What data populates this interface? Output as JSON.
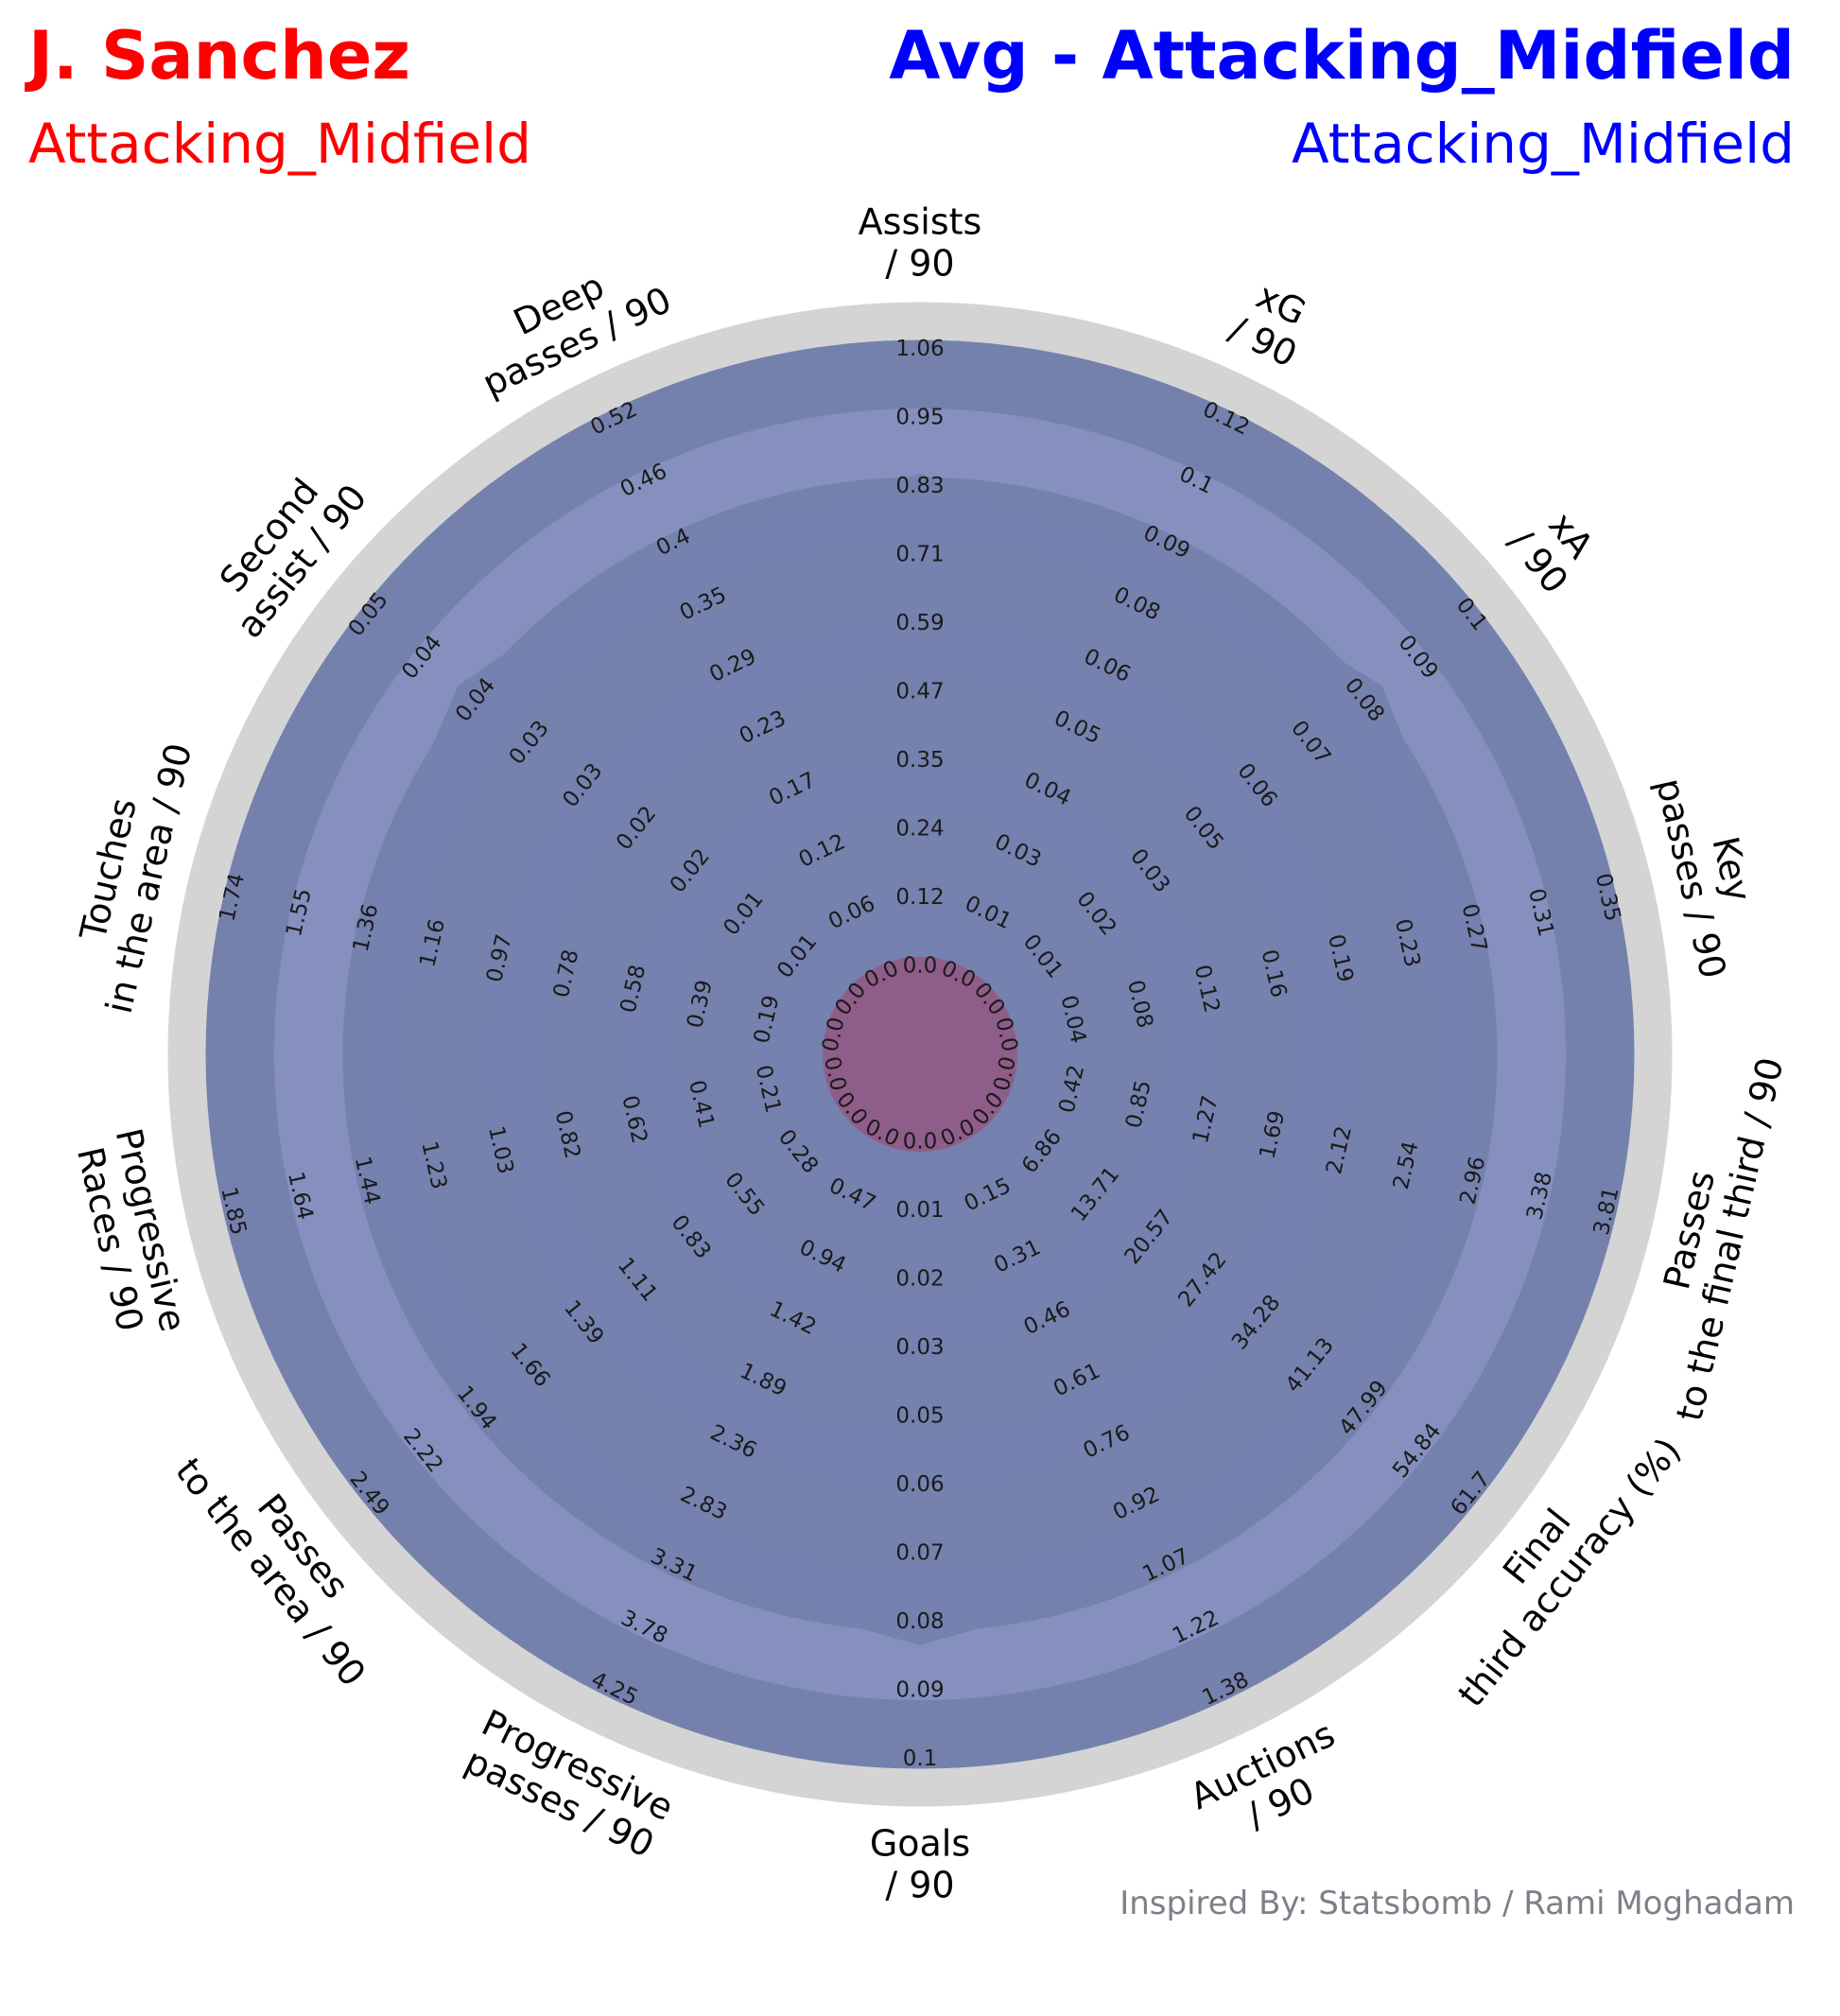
{
  "header": {
    "player_name": "J. Sanchez",
    "player_position": "Attacking_Midfield",
    "compare_name": "Avg - Attacking_Midfield",
    "compare_position": "Attacking_Midfield"
  },
  "credit": "Inspired By: Statsbomb / Rami Moghadam",
  "colors": {
    "player": "#ff0000",
    "compare": "#0000ff",
    "ring_dark": "#7581ad",
    "ring_light": "#8590bf",
    "outer_ring": "#d4d4d4",
    "player_fill": "#b03060",
    "compare_fill": "#7581ad"
  },
  "chart_data": {
    "type": "radar",
    "parameters": [
      {
        "label": [
          "Assists",
          "/ 90"
        ],
        "ticks": [
          "0.0",
          "0.12",
          "0.24",
          "0.35",
          "0.47",
          "0.59",
          "0.71",
          "0.83",
          "0.95",
          "1.06"
        ]
      },
      {
        "label": [
          "xG",
          "/ 90"
        ],
        "ticks": [
          "0.0",
          "0.01",
          "0.03",
          "0.04",
          "0.05",
          "0.06",
          "0.08",
          "0.09",
          "0.1",
          "0.12"
        ]
      },
      {
        "label": [
          "xA",
          "/ 90"
        ],
        "ticks": [
          "0.0",
          "0.01",
          "0.02",
          "0.03",
          "0.05",
          "0.06",
          "0.07",
          "0.08",
          "0.09",
          "0.1"
        ]
      },
      {
        "label": [
          "Key",
          "passes / 90"
        ],
        "ticks": [
          "0.0",
          "0.04",
          "0.08",
          "0.12",
          "0.16",
          "0.19",
          "0.23",
          "0.27",
          "0.31",
          "0.35"
        ]
      },
      {
        "label": [
          "Passes",
          "to the final third / 90"
        ],
        "ticks": [
          "0.0",
          "0.42",
          "0.85",
          "1.27",
          "1.69",
          "2.12",
          "2.54",
          "2.96",
          "3.38",
          "3.81"
        ]
      },
      {
        "label": [
          "Final",
          "third accuracy (%)"
        ],
        "ticks": [
          "0.0",
          "6.86",
          "13.71",
          "20.57",
          "27.42",
          "34.28",
          "41.13",
          "47.99",
          "54.84",
          "61.7"
        ]
      },
      {
        "label": [
          "Auctions",
          "/ 90"
        ],
        "ticks": [
          "0.0",
          "0.15",
          "0.31",
          "0.46",
          "0.61",
          "0.76",
          "0.92",
          "1.07",
          "1.22",
          "1.38"
        ]
      },
      {
        "label": [
          "Goals",
          "/ 90"
        ],
        "ticks": [
          "0.0",
          "0.01",
          "0.02",
          "0.03",
          "0.05",
          "0.06",
          "0.07",
          "0.08",
          "0.09",
          "0.1"
        ]
      },
      {
        "label": [
          "Progressive",
          "passes / 90"
        ],
        "ticks": [
          "0.0",
          "0.47",
          "0.94",
          "1.42",
          "1.89",
          "2.36",
          "2.83",
          "3.31",
          "3.78",
          "4.25"
        ]
      },
      {
        "label": [
          "Passes",
          "to the area / 90"
        ],
        "ticks": [
          "0.0",
          "0.28",
          "0.55",
          "0.83",
          "1.11",
          "1.39",
          "1.66",
          "1.94",
          "2.22",
          "2.49"
        ]
      },
      {
        "label": [
          "Progressive",
          "Races / 90"
        ],
        "ticks": [
          "0.0",
          "0.21",
          "0.41",
          "0.62",
          "0.82",
          "1.03",
          "1.23",
          "1.44",
          "1.64",
          "1.85"
        ]
      },
      {
        "label": [
          "Touches",
          "in the area / 90"
        ],
        "ticks": [
          "0.0",
          "0.19",
          "0.39",
          "0.58",
          "0.78",
          "0.97",
          "1.16",
          "1.36",
          "1.55",
          "1.74"
        ]
      },
      {
        "label": [
          "Second",
          "assist / 90"
        ],
        "ticks": [
          "0.0",
          "0.01",
          "0.01",
          "0.02",
          "0.02",
          "0.03",
          "0.03",
          "0.04",
          "0.04",
          "0.05"
        ]
      },
      {
        "label": [
          "Deep",
          "passes / 90"
        ],
        "ticks": [
          "0.0",
          "0.06",
          "0.12",
          "0.17",
          "0.23",
          "0.29",
          "0.35",
          "0.4",
          "0.46",
          "0.52"
        ]
      }
    ],
    "series": [
      {
        "name": "J. Sanchez",
        "values": [
          0,
          0,
          0,
          0,
          0,
          0,
          0,
          0,
          0,
          0,
          0,
          0,
          0,
          0
        ]
      },
      {
        "name": "Avg - Attacking_Midfield",
        "values": [
          0.83,
          0.09,
          0.08,
          0.27,
          2.96,
          47.99,
          1.07,
          0.08,
          3.31,
          1.94,
          1.44,
          1.36,
          0.04,
          0.4
        ]
      }
    ]
  }
}
